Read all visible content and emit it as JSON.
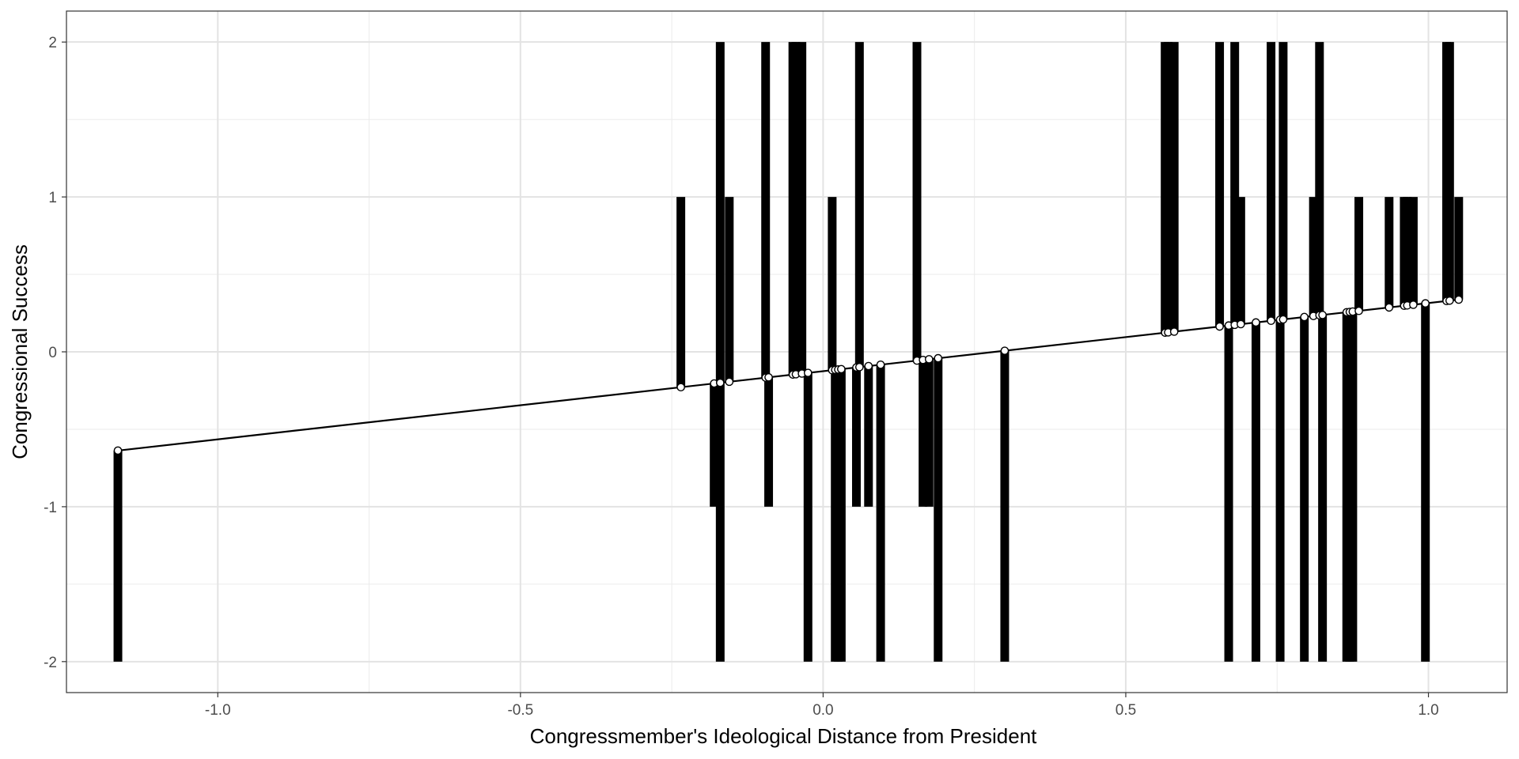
{
  "chart_data": {
    "type": "scatter",
    "title": "",
    "xlabel": "Congressmember's Ideological Distance from President",
    "ylabel": "Congressional Success",
    "xlim": [
      -1.25,
      1.13
    ],
    "ylim": [
      -2.2,
      2.2
    ],
    "x_ticks": [
      -1.0,
      -0.5,
      0.0,
      0.5,
      1.0
    ],
    "x_tick_labels": [
      "-1.0",
      "-0.5",
      "0.0",
      "0.5",
      "1.0"
    ],
    "y_ticks": [
      -2,
      -1,
      0,
      1,
      2
    ],
    "y_tick_labels": [
      "-2",
      "-1",
      "0",
      "1",
      "2"
    ],
    "grid": true,
    "legend": "none",
    "fit_line": {
      "intercept": -0.125,
      "slope": 0.44,
      "x_range": [
        -1.165,
        1.05
      ]
    },
    "observed_segments": [
      {
        "x": -1.165,
        "y": -2
      },
      {
        "x": -0.235,
        "y": 1
      },
      {
        "x": -0.18,
        "y": -1
      },
      {
        "x": -0.17,
        "y": 2
      },
      {
        "x": -0.17,
        "y": -2
      },
      {
        "x": -0.155,
        "y": 1
      },
      {
        "x": -0.095,
        "y": 2
      },
      {
        "x": -0.09,
        "y": -1
      },
      {
        "x": -0.05,
        "y": 2
      },
      {
        "x": -0.045,
        "y": 2
      },
      {
        "x": -0.035,
        "y": 2
      },
      {
        "x": -0.025,
        "y": -2
      },
      {
        "x": 0.015,
        "y": 1
      },
      {
        "x": 0.02,
        "y": -2
      },
      {
        "x": 0.025,
        "y": -2
      },
      {
        "x": 0.03,
        "y": -2
      },
      {
        "x": 0.055,
        "y": -1
      },
      {
        "x": 0.06,
        "y": 2
      },
      {
        "x": 0.075,
        "y": -1
      },
      {
        "x": 0.095,
        "y": -2
      },
      {
        "x": 0.155,
        "y": 2
      },
      {
        "x": 0.165,
        "y": -1
      },
      {
        "x": 0.175,
        "y": -1
      },
      {
        "x": 0.19,
        "y": -2
      },
      {
        "x": 0.3,
        "y": -2
      },
      {
        "x": 0.565,
        "y": 2
      },
      {
        "x": 0.57,
        "y": 2
      },
      {
        "x": 0.58,
        "y": 2
      },
      {
        "x": 0.655,
        "y": 2
      },
      {
        "x": 0.67,
        "y": -2
      },
      {
        "x": 0.68,
        "y": 2
      },
      {
        "x": 0.69,
        "y": 1
      },
      {
        "x": 0.715,
        "y": -2
      },
      {
        "x": 0.74,
        "y": 2
      },
      {
        "x": 0.755,
        "y": -2
      },
      {
        "x": 0.76,
        "y": 2
      },
      {
        "x": 0.795,
        "y": -2
      },
      {
        "x": 0.81,
        "y": 1
      },
      {
        "x": 0.82,
        "y": 2
      },
      {
        "x": 0.825,
        "y": -2
      },
      {
        "x": 0.865,
        "y": -2
      },
      {
        "x": 0.87,
        "y": -2
      },
      {
        "x": 0.875,
        "y": -2
      },
      {
        "x": 0.885,
        "y": 1
      },
      {
        "x": 0.935,
        "y": 1
      },
      {
        "x": 0.96,
        "y": 1
      },
      {
        "x": 0.965,
        "y": 1
      },
      {
        "x": 0.975,
        "y": 1
      },
      {
        "x": 0.995,
        "y": -2
      },
      {
        "x": 1.03,
        "y": 2
      },
      {
        "x": 1.035,
        "y": 2
      },
      {
        "x": 1.05,
        "y": 1
      }
    ]
  }
}
